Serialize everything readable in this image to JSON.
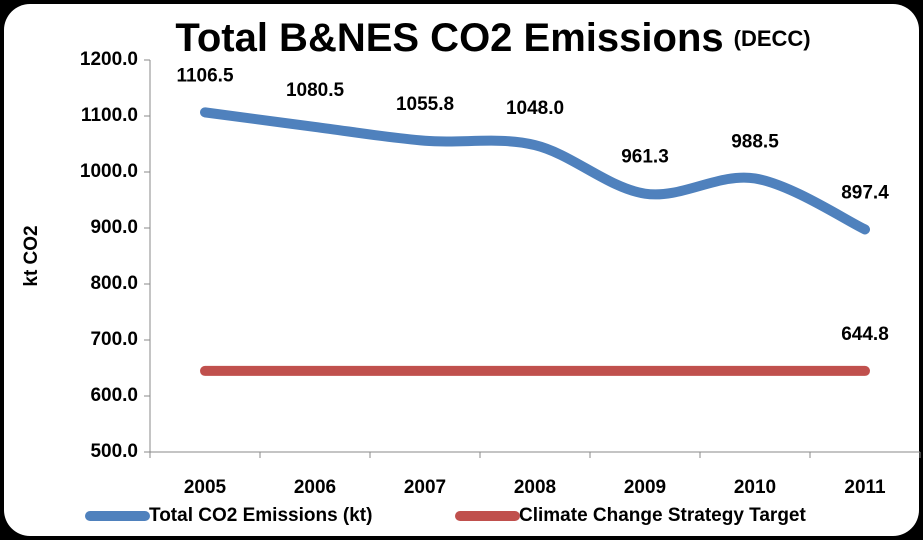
{
  "chart_data": {
    "type": "line",
    "title": "Total B&NES CO2 Emissions",
    "subtitle": "(DECC)",
    "y_label": "kt CO2",
    "categories": [
      "2005",
      "2006",
      "2007",
      "2008",
      "2009",
      "2010",
      "2011"
    ],
    "series": [
      {
        "name": "Total CO2 Emissions (kt)",
        "color": "#4f81bd",
        "values": [
          1106.5,
          1080.5,
          1055.8,
          1048.0,
          961.3,
          988.5,
          897.4
        ],
        "value_labels": [
          "1106.5",
          "1080.5",
          "1055.8",
          "1048.0",
          "961.3",
          "988.5",
          "897.4"
        ]
      },
      {
        "name": "Climate Change Strategy Target",
        "color": "#c0504d",
        "values": [
          644.8,
          644.8,
          644.8,
          644.8,
          644.8,
          644.8,
          644.8
        ],
        "value_labels": [
          null,
          null,
          null,
          null,
          null,
          null,
          "644.8"
        ]
      }
    ],
    "ylim": [
      500,
      1200
    ],
    "yticks": [
      {
        "value": 500,
        "label": "500.0"
      },
      {
        "value": 600,
        "label": "600.0"
      },
      {
        "value": 700,
        "label": "700.0"
      },
      {
        "value": 800,
        "label": "800.0"
      },
      {
        "value": 900,
        "label": "900.0"
      },
      {
        "value": 1000,
        "label": "1000.0"
      },
      {
        "value": 1100,
        "label": "1100.0"
      },
      {
        "value": 1200,
        "label": "1200.0"
      }
    ],
    "grid": false,
    "smooth": true,
    "legend": "bottom"
  }
}
